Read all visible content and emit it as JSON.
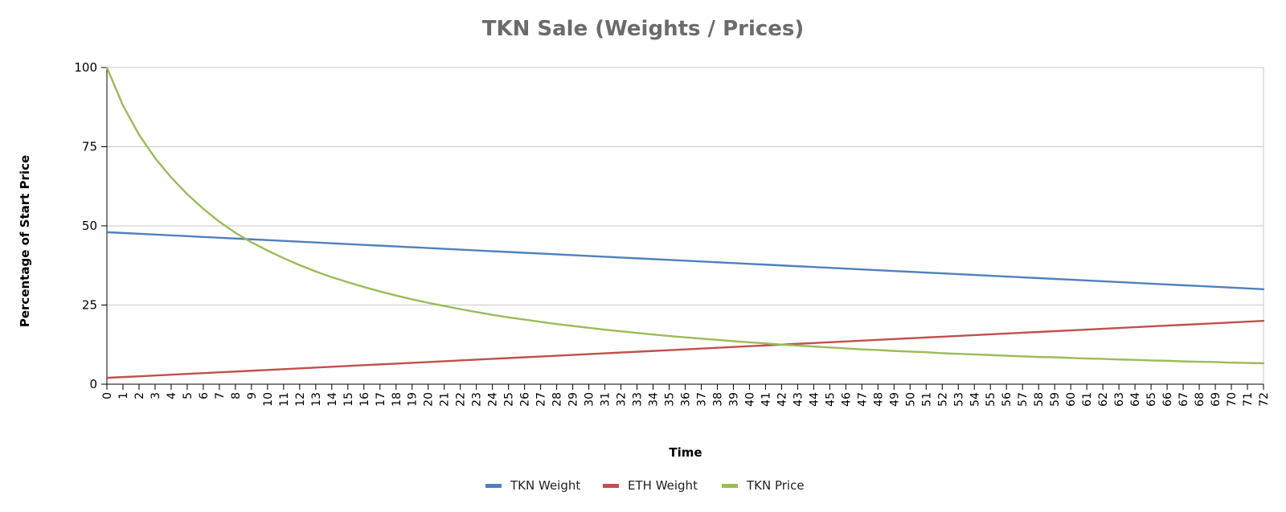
{
  "chart_data": {
    "type": "line",
    "title": "TKN Sale (Weights / Prices)",
    "xlabel": "Time",
    "ylabel": "Percentage of Start Price",
    "x_range": [
      0,
      72
    ],
    "ylim": [
      0,
      100
    ],
    "y_ticks": [
      0,
      25,
      50,
      75,
      100
    ],
    "grid": "horizontal",
    "legend_position": "bottom",
    "x": [
      0,
      1,
      2,
      3,
      4,
      5,
      6,
      7,
      8,
      9,
      10,
      11,
      12,
      13,
      14,
      15,
      16,
      17,
      18,
      19,
      20,
      21,
      22,
      23,
      24,
      25,
      26,
      27,
      28,
      29,
      30,
      31,
      32,
      33,
      34,
      35,
      36,
      37,
      38,
      39,
      40,
      41,
      42,
      43,
      44,
      45,
      46,
      47,
      48,
      49,
      50,
      51,
      52,
      53,
      54,
      55,
      56,
      57,
      58,
      59,
      60,
      61,
      62,
      63,
      64,
      65,
      66,
      67,
      68,
      69,
      70,
      71,
      72
    ],
    "series": [
      {
        "name": "TKN Weight",
        "color": "#4f81bd",
        "values": [
          48.0,
          47.75,
          47.5,
          47.25,
          47.0,
          46.75,
          46.5,
          46.25,
          46.0,
          45.75,
          45.5,
          45.25,
          45.0,
          44.75,
          44.5,
          44.25,
          44.0,
          43.75,
          43.5,
          43.25,
          43.0,
          42.75,
          42.5,
          42.25,
          42.0,
          41.75,
          41.5,
          41.25,
          41.0,
          40.75,
          40.5,
          40.25,
          40.0,
          39.75,
          39.5,
          39.25,
          39.0,
          38.75,
          38.5,
          38.25,
          38.0,
          37.75,
          37.5,
          37.25,
          37.0,
          36.75,
          36.5,
          36.25,
          36.0,
          35.75,
          35.5,
          35.25,
          35.0,
          34.75,
          34.5,
          34.25,
          34.0,
          33.75,
          33.5,
          33.25,
          33.0,
          32.75,
          32.5,
          32.25,
          32.0,
          31.75,
          31.5,
          31.25,
          31.0,
          30.75,
          30.5,
          30.25,
          30.0
        ]
      },
      {
        "name": "ETH Weight",
        "color": "#c0504d",
        "values": [
          2.0,
          2.25,
          2.5,
          2.75,
          3.0,
          3.25,
          3.5,
          3.75,
          4.0,
          4.25,
          4.5,
          4.75,
          5.0,
          5.25,
          5.5,
          5.75,
          6.0,
          6.25,
          6.5,
          6.75,
          7.0,
          7.25,
          7.5,
          7.75,
          8.0,
          8.25,
          8.5,
          8.75,
          9.0,
          9.25,
          9.5,
          9.75,
          10.0,
          10.25,
          10.5,
          10.75,
          11.0,
          11.25,
          11.5,
          11.75,
          12.0,
          12.25,
          12.5,
          12.75,
          13.0,
          13.25,
          13.5,
          13.75,
          14.0,
          14.25,
          14.5,
          14.75,
          15.0,
          15.25,
          15.5,
          15.75,
          16.0,
          16.25,
          16.5,
          16.75,
          17.0,
          17.25,
          17.5,
          17.75,
          18.0,
          18.25,
          18.5,
          18.75,
          19.0,
          19.25,
          19.5,
          19.75,
          20.0
        ]
      },
      {
        "name": "TKN Price",
        "color": "#9bbb59",
        "values": [
          100.0,
          88.0,
          78.8,
          71.4,
          65.3,
          60.0,
          55.4,
          51.3,
          47.8,
          44.8,
          42.2,
          39.8,
          37.6,
          35.6,
          33.8,
          32.2,
          30.7,
          29.3,
          28.0,
          26.8,
          25.7,
          24.7,
          23.7,
          22.8,
          21.9,
          21.1,
          20.4,
          19.7,
          19.0,
          18.4,
          17.8,
          17.2,
          16.7,
          16.2,
          15.7,
          15.2,
          14.8,
          14.4,
          14.0,
          13.6,
          13.2,
          12.9,
          12.5,
          12.2,
          11.9,
          11.6,
          11.3,
          11.0,
          10.8,
          10.5,
          10.3,
          10.1,
          9.8,
          9.6,
          9.4,
          9.2,
          9.0,
          8.8,
          8.6,
          8.5,
          8.3,
          8.1,
          8.0,
          7.8,
          7.7,
          7.5,
          7.4,
          7.2,
          7.1,
          7.0,
          6.8,
          6.7,
          6.6
        ]
      }
    ]
  }
}
